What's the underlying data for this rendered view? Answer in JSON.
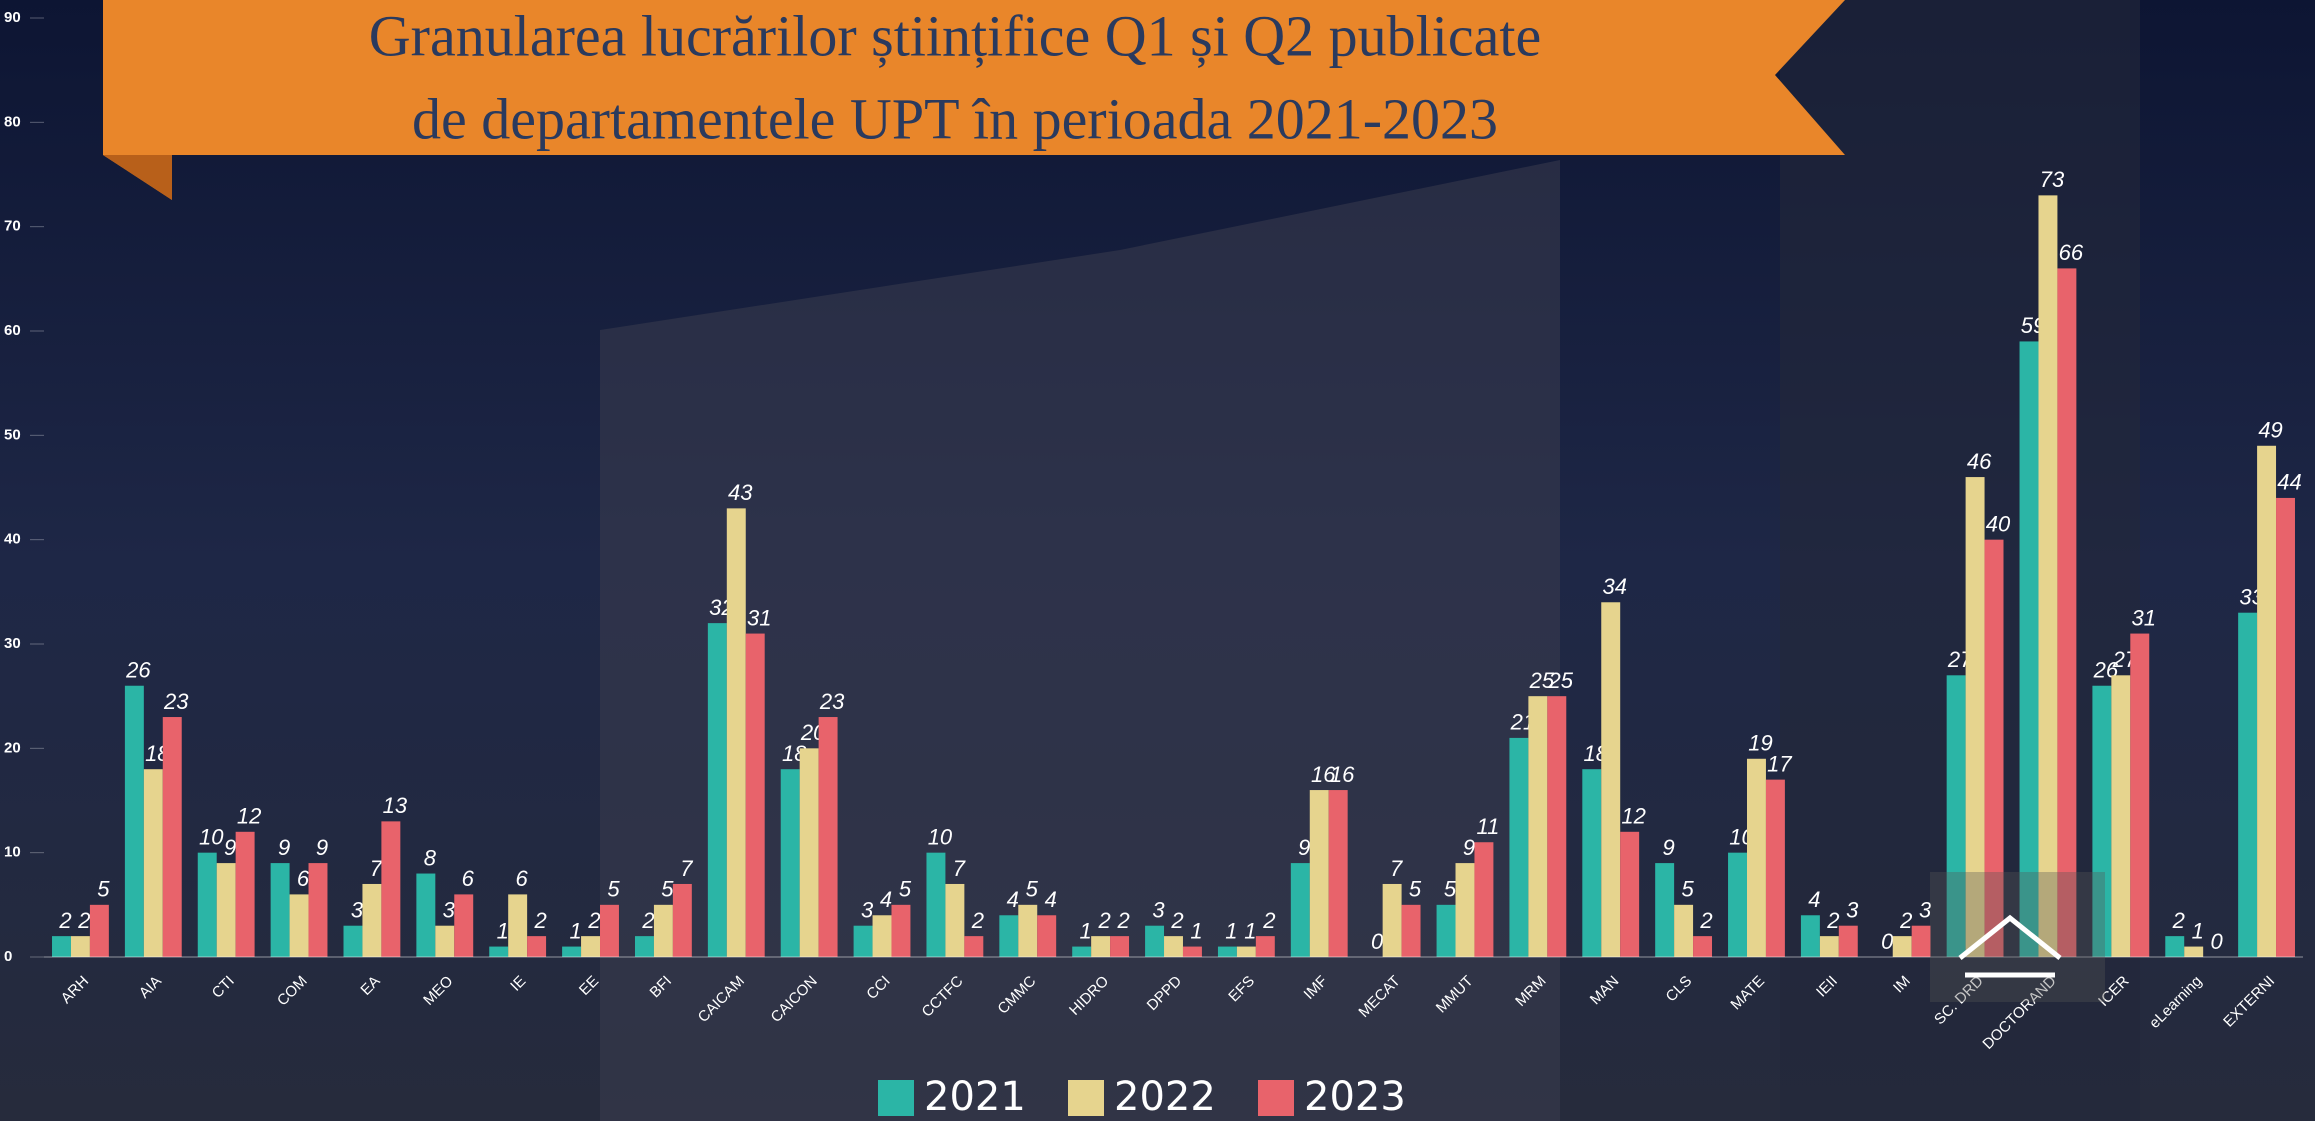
{
  "chart_data": {
    "type": "bar",
    "title": [
      "Granularea lucrărilor științifice Q1 și Q2 publicate",
      "de departamentele UPT în perioada 2021-2023"
    ],
    "categories": [
      "ARH",
      "AIA",
      "CTI",
      "COM",
      "EA",
      "MEO",
      "IE",
      "EE",
      "BFI",
      "CAICAM",
      "CAICON",
      "CCI",
      "CCTFC",
      "CMMC",
      "HIDRO",
      "DPPD",
      "EFS",
      "IMF",
      "MECAT",
      "MMUT",
      "MRM",
      "MAN",
      "CLS",
      "MATE",
      "IEII",
      "IM",
      "SC. DRD",
      "DOCTORAND",
      "ICER",
      "eLearning",
      "EXTERNI"
    ],
    "series": [
      {
        "name": "2021",
        "color": "#2bb5a6",
        "values": [
          2,
          26,
          10,
          9,
          3,
          8,
          1,
          1,
          2,
          32,
          18,
          3,
          10,
          4,
          1,
          3,
          1,
          9,
          0,
          5,
          21,
          18,
          9,
          10,
          4,
          0,
          27,
          59,
          26,
          2,
          33
        ]
      },
      {
        "name": "2022",
        "color": "#e6d48e",
        "values": [
          2,
          18,
          9,
          6,
          7,
          3,
          6,
          2,
          5,
          43,
          20,
          4,
          7,
          5,
          2,
          2,
          1,
          16,
          7,
          9,
          25,
          34,
          5,
          19,
          2,
          2,
          46,
          73,
          27,
          1,
          49
        ]
      },
      {
        "name": "2023",
        "color": "#e8636b",
        "values": [
          5,
          23,
          12,
          9,
          13,
          6,
          2,
          5,
          7,
          31,
          23,
          5,
          2,
          4,
          2,
          1,
          2,
          16,
          5,
          11,
          25,
          12,
          2,
          17,
          3,
          3,
          40,
          66,
          31,
          0,
          44
        ]
      }
    ],
    "ylim": [
      0,
      90
    ],
    "yticks": [
      0,
      10,
      20,
      30,
      40,
      50,
      60,
      70,
      80,
      90
    ],
    "grid": false
  }
}
